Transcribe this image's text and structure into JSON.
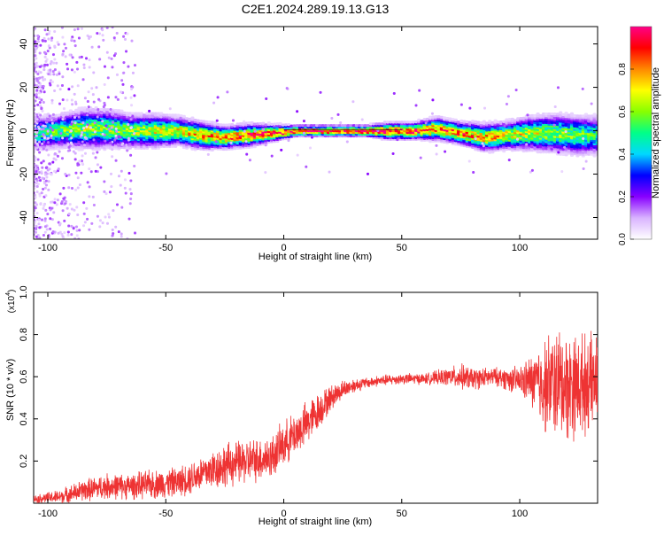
{
  "title": "C2E1.2024.289.19.13.G13",
  "chart_data": [
    {
      "type": "heatmap",
      "title": "C2E1.2024.289.19.13.G13",
      "xlabel": "Height of straight line (km)",
      "ylabel": "Frequency (Hz)",
      "xlim": [
        -106,
        133
      ],
      "ylim": [
        -50,
        48
      ],
      "x_ticks": [
        -100,
        -50,
        0,
        50,
        100
      ],
      "y_ticks": [
        -40,
        -20,
        0,
        20,
        40
      ],
      "colorbar": {
        "label": "Normalized spectral amplitude",
        "range": [
          0.0,
          1.0
        ],
        "ticks": [
          0.0,
          0.2,
          0.4,
          0.6,
          0.8
        ],
        "colormap": [
          "#ffffff",
          "#d9b3ff",
          "#8800ff",
          "#0000ff",
          "#00d8ff",
          "#00ff88",
          "#88ff00",
          "#ffff00",
          "#ff8800",
          "#ff0000",
          "#ff0088"
        ]
      },
      "ridge": {
        "x": [
          -105,
          -95,
          -85,
          -75,
          -65,
          -55,
          -45,
          -35,
          -25,
          -15,
          -5,
          5,
          15,
          25,
          35,
          45,
          55,
          65,
          75,
          85,
          95,
          105,
          115,
          125,
          133
        ],
        "center_hz": [
          -1,
          0,
          1,
          1,
          0,
          0,
          0,
          -2,
          -3,
          -2,
          -1,
          0,
          0,
          0,
          0,
          0,
          0,
          1,
          -1,
          -3,
          -2,
          -1,
          -1,
          -2,
          -2
        ],
        "halfwidth_hz": [
          6,
          6,
          7,
          7,
          6,
          6,
          5,
          5,
          4,
          4,
          3,
          2,
          2,
          2,
          2,
          3,
          3,
          4,
          4,
          5,
          5,
          6,
          7,
          7,
          7
        ],
        "peak_amplitude": [
          0.5,
          0.55,
          0.6,
          0.6,
          0.6,
          0.65,
          0.7,
          0.75,
          0.8,
          0.85,
          0.9,
          0.9,
          0.9,
          0.95,
          0.95,
          0.95,
          0.9,
          0.85,
          0.8,
          0.75,
          0.7,
          0.65,
          0.6,
          0.55,
          0.5
        ]
      }
    },
    {
      "type": "line",
      "xlabel": "Height of straight line (km)",
      "ylabel": "SNR (10 * v/v)",
      "y_scale_label": "(x10",
      "y_scale_exponent": "4",
      "xlim": [
        -106,
        133
      ],
      "ylim": [
        0,
        1.0
      ],
      "x_ticks": [
        -100,
        -50,
        0,
        50,
        100
      ],
      "y_ticks": [
        0.2,
        0.4,
        0.6,
        0.8,
        1.0
      ],
      "series": [
        {
          "color": "#ee3333",
          "envelope_x": [
            -106,
            -95,
            -85,
            -75,
            -65,
            -55,
            -45,
            -35,
            -25,
            -15,
            -5,
            0,
            5,
            10,
            15,
            20,
            25,
            30,
            35,
            40,
            50,
            60,
            70,
            75,
            80,
            90,
            100,
            105,
            110,
            115,
            120,
            125,
            133
          ],
          "envelope_mean": [
            0.02,
            0.03,
            0.06,
            0.08,
            0.08,
            0.09,
            0.1,
            0.14,
            0.18,
            0.2,
            0.22,
            0.28,
            0.33,
            0.38,
            0.44,
            0.5,
            0.54,
            0.56,
            0.57,
            0.58,
            0.59,
            0.59,
            0.6,
            0.6,
            0.59,
            0.6,
            0.58,
            0.58,
            0.56,
            0.57,
            0.56,
            0.56,
            0.58
          ],
          "envelope_spread": [
            0.02,
            0.04,
            0.06,
            0.07,
            0.07,
            0.08,
            0.08,
            0.1,
            0.12,
            0.12,
            0.12,
            0.12,
            0.12,
            0.12,
            0.1,
            0.07,
            0.05,
            0.04,
            0.03,
            0.03,
            0.03,
            0.03,
            0.05,
            0.07,
            0.06,
            0.05,
            0.08,
            0.14,
            0.25,
            0.3,
            0.3,
            0.28,
            0.24
          ]
        }
      ]
    }
  ]
}
